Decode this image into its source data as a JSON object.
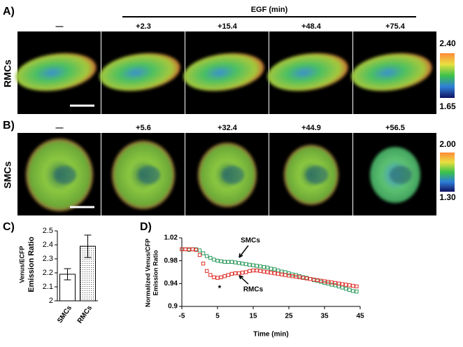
{
  "panel_a": {
    "label": "A)",
    "header": "EGF (min)",
    "times": [
      "—",
      "+2.3",
      "+15.4",
      "+48.4",
      "+75.4"
    ],
    "row_label": "RMCs",
    "colorbar": [
      "2.40",
      "1.65"
    ]
  },
  "panel_b": {
    "label": "B)",
    "times": [
      "—",
      "+5.6",
      "+32.4",
      "+44.9",
      "+56.5"
    ],
    "row_label": "SMCs",
    "colorbar": [
      "2.00",
      "1.30"
    ]
  },
  "chart_data": [
    {
      "type": "bar",
      "panel_label": "C)",
      "ylabel": [
        "Venus/ECFP",
        "Emission Ratio"
      ],
      "categories": [
        "SMCs",
        "RMCs"
      ],
      "values": [
        2.19,
        2.39
      ],
      "error": [
        0.04,
        0.08
      ],
      "colors": [
        "#ffffff",
        "#d9d9d9"
      ],
      "ylim": [
        2,
        2.5
      ],
      "yticks": [
        2,
        2.1,
        2.2,
        2.3,
        2.4,
        2.5
      ]
    },
    {
      "type": "scatter",
      "panel_label": "D)",
      "xlabel": "Time (min)",
      "ylabel": [
        "Normalized Venus/CFP",
        "Emission Ratio"
      ],
      "xlim": [
        -5,
        45
      ],
      "xticks": [
        -5,
        5,
        15,
        25,
        35,
        45
      ],
      "ylim": [
        0.9,
        1.02
      ],
      "yticks": [
        0.9,
        0.94,
        0.98,
        1.02
      ],
      "x": [
        -5,
        -4,
        -3,
        -2,
        -1,
        0,
        1,
        2,
        3,
        4,
        5,
        6,
        7,
        8,
        9,
        10,
        11,
        12,
        13,
        14,
        15,
        16,
        17,
        18,
        19,
        20,
        21,
        22,
        23,
        24,
        25,
        26,
        27,
        28,
        29,
        30,
        31,
        32,
        33,
        34,
        35,
        36,
        37,
        38,
        39,
        40,
        41,
        42,
        43,
        44
      ],
      "series": [
        {
          "name": "SMCs",
          "color": "#2e9b5e",
          "values": [
            1.0,
            1.0,
            0.999,
            1.0,
            1.0,
            0.998,
            0.993,
            0.988,
            0.985,
            0.982,
            0.98,
            0.979,
            0.978,
            0.978,
            0.978,
            0.977,
            0.976,
            0.975,
            0.974,
            0.973,
            0.972,
            0.971,
            0.97,
            0.969,
            0.968,
            0.966,
            0.965,
            0.963,
            0.961,
            0.96,
            0.958,
            0.956,
            0.955,
            0.953,
            0.951,
            0.95,
            0.948,
            0.946,
            0.945,
            0.943,
            0.941,
            0.94,
            0.938,
            0.937,
            0.935,
            0.933,
            0.931,
            0.929,
            0.927,
            0.926
          ]
        },
        {
          "name": "RMCs",
          "color": "#e0302a",
          "values": [
            1.0,
            1.0,
            1.0,
            1.0,
            0.999,
            0.99,
            0.975,
            0.962,
            0.955,
            0.951,
            0.95,
            0.951,
            0.953,
            0.955,
            0.957,
            0.958,
            0.958,
            0.959,
            0.96,
            0.962,
            0.963,
            0.963,
            0.962,
            0.961,
            0.96,
            0.959,
            0.958,
            0.957,
            0.956,
            0.955,
            0.954,
            0.953,
            0.952,
            0.951,
            0.95,
            0.949,
            0.948,
            0.947,
            0.946,
            0.945,
            0.944,
            0.943,
            0.942,
            0.941,
            0.94,
            0.939,
            0.938,
            0.937,
            0.936,
            0.935
          ]
        }
      ],
      "annotations": [
        "*"
      ]
    }
  ]
}
